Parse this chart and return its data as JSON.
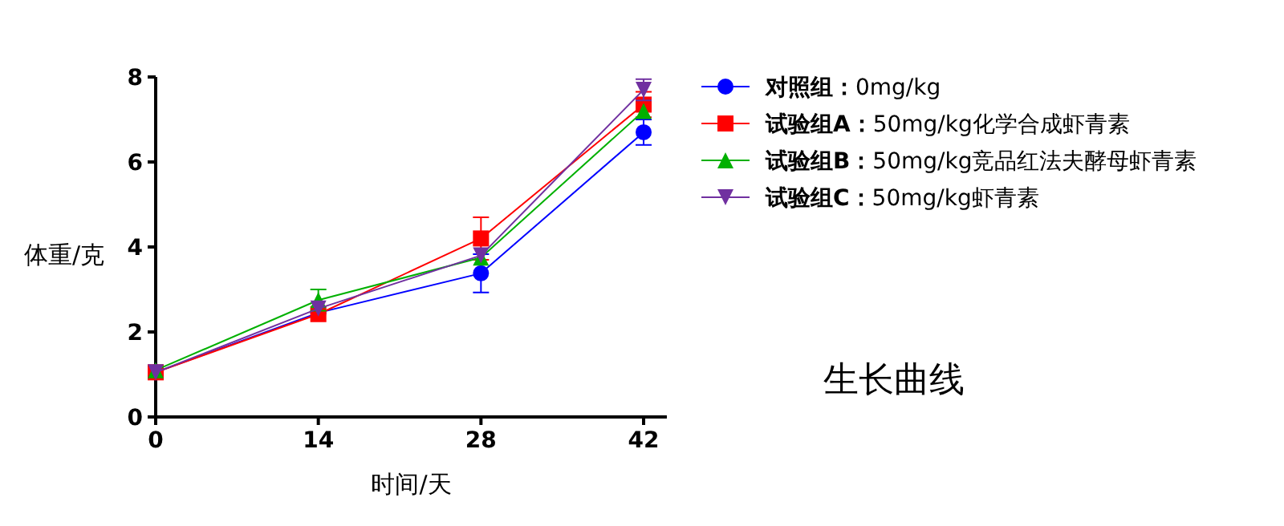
{
  "chart_data": {
    "type": "line",
    "title": "生长曲线",
    "xlabel": "时间/天",
    "ylabel": "体重/克",
    "x": [
      0,
      14,
      28,
      42
    ],
    "xlim": [
      0,
      44
    ],
    "xticks": [
      0,
      14,
      28,
      42
    ],
    "ylim": [
      0,
      8
    ],
    "yticks": [
      0,
      2,
      4,
      6,
      8
    ],
    "legend": "right",
    "grid": false,
    "line_style": "solid",
    "series": [
      {
        "name": "**对照组：**0mg/kg",
        "color": "#0000ff",
        "marker": "circle",
        "values": [
          1.05,
          2.45,
          3.38,
          6.7
        ],
        "errors": [
          null,
          null,
          0.45,
          0.3
        ]
      },
      {
        "name": "**试验组A：**50mg/kg化学合成虾青素",
        "color": "#ff0000",
        "marker": "square",
        "values": [
          1.05,
          2.42,
          4.2,
          7.35
        ],
        "errors": [
          null,
          null,
          0.5,
          0.3
        ]
      },
      {
        "name": "**试验组B：**50mg/kg竞品红法夫酵母虾青素",
        "color": "#00b000",
        "marker": "triangle",
        "values": [
          1.1,
          2.75,
          3.75,
          7.2
        ],
        "errors": [
          null,
          0.25,
          null,
          null
        ]
      },
      {
        "name": "**试验组C：**50mg/kg虾青素",
        "color": "#7030a0",
        "marker": "triangle-down",
        "values": [
          1.05,
          2.55,
          3.8,
          7.7
        ],
        "errors": [
          null,
          null,
          null,
          0.25
        ]
      }
    ]
  }
}
